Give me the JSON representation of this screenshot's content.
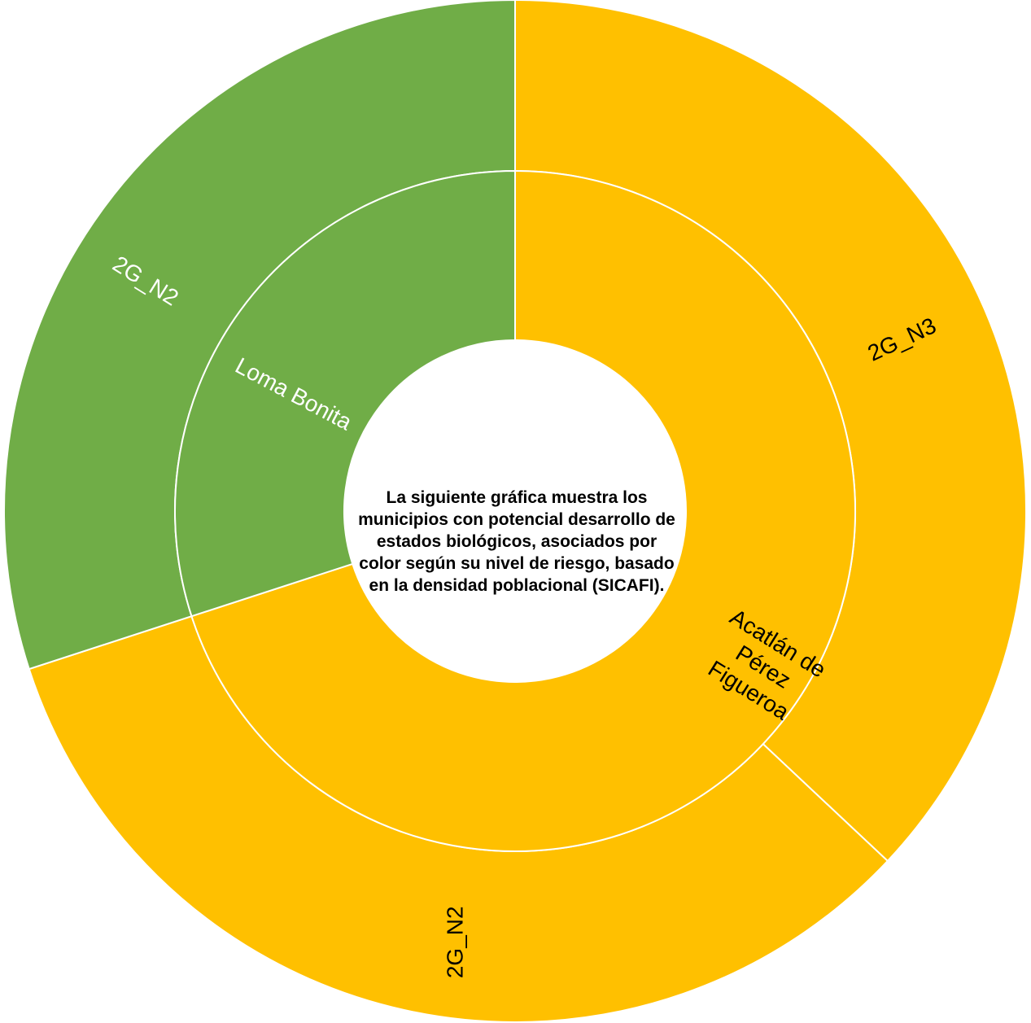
{
  "chart_data": {
    "type": "sunburst",
    "center_text": "La siguiente gráfica muestra los municipios con potencial desarrollo de estados biológicos,  asociados por color según su nivel de riesgo, basado en la densidad poblacional (SICAFI).",
    "inner_ring": [
      {
        "label": "Loma Bonita",
        "value": 30,
        "color": "#70AD47"
      },
      {
        "label": "Acatlán de Pérez Figueroa",
        "value": 70,
        "color": "#FFC000"
      }
    ],
    "outer_ring": [
      {
        "label": "2G_N3",
        "value": 37,
        "parent": "Acatlán de Pérez Figueroa",
        "color": "#FFC000"
      },
      {
        "label": "2G_N2",
        "value": 33,
        "parent": "Acatlán de Pérez Figueroa",
        "color": "#FFC000"
      },
      {
        "label": "2G_N2",
        "value": 30,
        "parent": "Loma Bonita",
        "color": "#70AD47"
      }
    ],
    "colors": {
      "low": "#70AD47",
      "medium": "#FFC000",
      "separator": "#FFFFFF"
    }
  }
}
